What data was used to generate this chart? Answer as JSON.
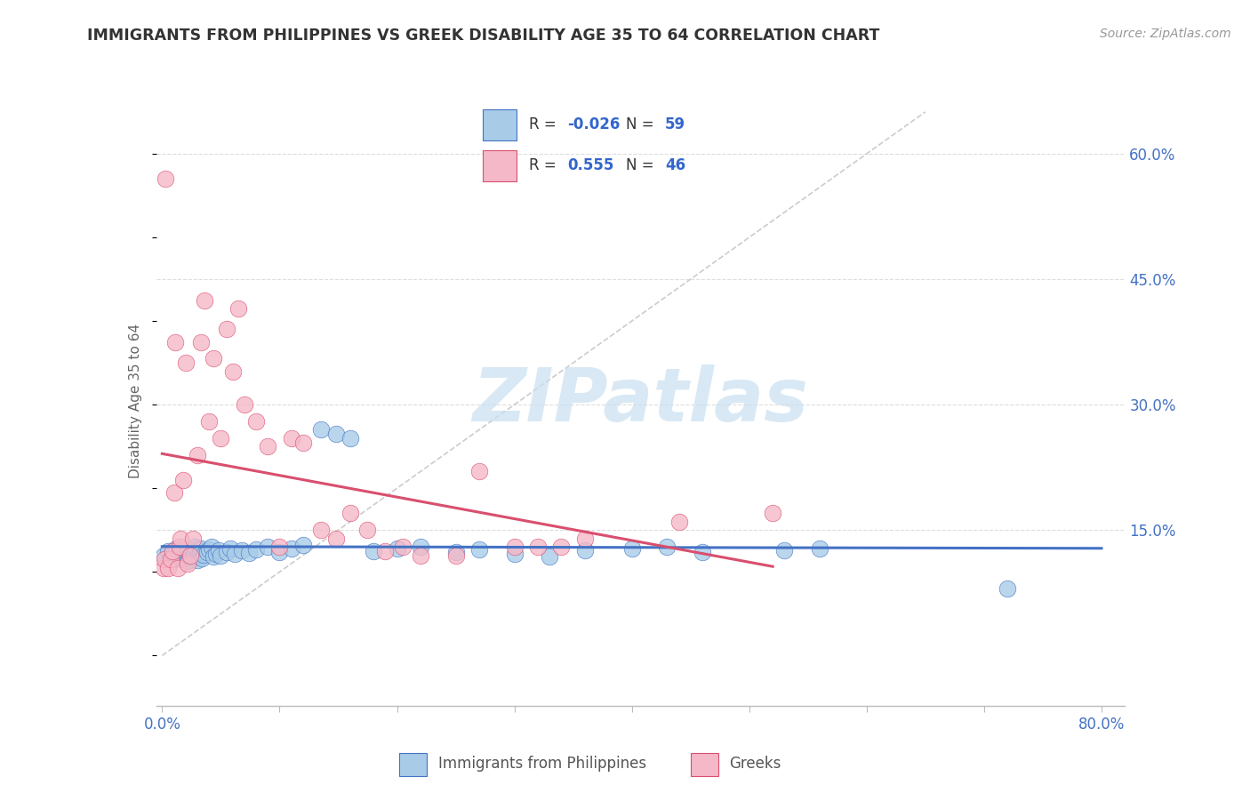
{
  "title": "IMMIGRANTS FROM PHILIPPINES VS GREEK DISABILITY AGE 35 TO 64 CORRELATION CHART",
  "source": "Source: ZipAtlas.com",
  "ylabel": "Disability Age 35 to 64",
  "xlim": [
    -0.005,
    0.82
  ],
  "ylim": [
    -0.06,
    0.67
  ],
  "y_tick_positions": [
    0.15,
    0.3,
    0.45,
    0.6
  ],
  "y_tick_labels": [
    "15.0%",
    "30.0%",
    "45.0%",
    "60.0%"
  ],
  "x_tick_positions": [
    0.0,
    0.1,
    0.2,
    0.3,
    0.4,
    0.5,
    0.6,
    0.7,
    0.8
  ],
  "x_tick_labels": [
    "0.0%",
    "",
    "",
    "",
    "",
    "",
    "",
    "",
    "80.0%"
  ],
  "color_philippines": "#a8cce8",
  "color_greeks": "#f5b8c8",
  "line_color_philippines": "#4472C4",
  "line_color_greeks": "#d94f6e",
  "diag_line_color": "#cccccc",
  "grid_color": "#dddddd",
  "watermark_color": "#c8dff0",
  "watermark": "ZIPatlas",
  "legend_r1_label": "R = ",
  "legend_r1_val": "-0.026",
  "legend_n1_label": "N = ",
  "legend_n1_val": "59",
  "legend_r2_label": "R =  ",
  "legend_r2_val": "0.555",
  "legend_n2_label": "N = ",
  "legend_n2_val": "46",
  "philippines_x": [
    0.001,
    0.005,
    0.008,
    0.009,
    0.011,
    0.012,
    0.013,
    0.015,
    0.016,
    0.018,
    0.019,
    0.02,
    0.021,
    0.022,
    0.023,
    0.025,
    0.026,
    0.027,
    0.028,
    0.03,
    0.031,
    0.032,
    0.033,
    0.034,
    0.035,
    0.038,
    0.04,
    0.042,
    0.044,
    0.046,
    0.048,
    0.05,
    0.055,
    0.058,
    0.062,
    0.068,
    0.074,
    0.08,
    0.09,
    0.1,
    0.11,
    0.12,
    0.135,
    0.148,
    0.16,
    0.18,
    0.2,
    0.22,
    0.25,
    0.27,
    0.3,
    0.33,
    0.36,
    0.4,
    0.43,
    0.46,
    0.53,
    0.56,
    0.72
  ],
  "philippines_y": [
    0.12,
    0.125,
    0.118,
    0.122,
    0.115,
    0.128,
    0.119,
    0.123,
    0.126,
    0.116,
    0.121,
    0.124,
    0.127,
    0.113,
    0.12,
    0.118,
    0.125,
    0.122,
    0.13,
    0.114,
    0.119,
    0.123,
    0.128,
    0.116,
    0.121,
    0.124,
    0.127,
    0.13,
    0.118,
    0.122,
    0.126,
    0.12,
    0.124,
    0.128,
    0.122,
    0.126,
    0.123,
    0.127,
    0.13,
    0.124,
    0.128,
    0.132,
    0.27,
    0.265,
    0.26,
    0.125,
    0.128,
    0.13,
    0.124,
    0.127,
    0.122,
    0.118,
    0.126,
    0.128,
    0.13,
    0.124,
    0.126,
    0.128,
    0.08
  ],
  "greeks_x": [
    0.001,
    0.002,
    0.003,
    0.005,
    0.007,
    0.009,
    0.01,
    0.011,
    0.013,
    0.015,
    0.016,
    0.018,
    0.02,
    0.022,
    0.024,
    0.026,
    0.03,
    0.033,
    0.036,
    0.04,
    0.044,
    0.05,
    0.055,
    0.06,
    0.065,
    0.07,
    0.08,
    0.09,
    0.1,
    0.11,
    0.12,
    0.135,
    0.148,
    0.16,
    0.175,
    0.19,
    0.205,
    0.22,
    0.25,
    0.27,
    0.3,
    0.32,
    0.34,
    0.36,
    0.44,
    0.52
  ],
  "greeks_y": [
    0.105,
    0.115,
    0.57,
    0.105,
    0.115,
    0.125,
    0.195,
    0.375,
    0.105,
    0.13,
    0.14,
    0.21,
    0.35,
    0.11,
    0.12,
    0.14,
    0.24,
    0.375,
    0.425,
    0.28,
    0.355,
    0.26,
    0.39,
    0.34,
    0.415,
    0.3,
    0.28,
    0.25,
    0.13,
    0.26,
    0.255,
    0.15,
    0.14,
    0.17,
    0.15,
    0.125,
    0.13,
    0.12,
    0.12,
    0.22,
    0.13,
    0.13,
    0.13,
    0.14,
    0.16,
    0.17
  ]
}
